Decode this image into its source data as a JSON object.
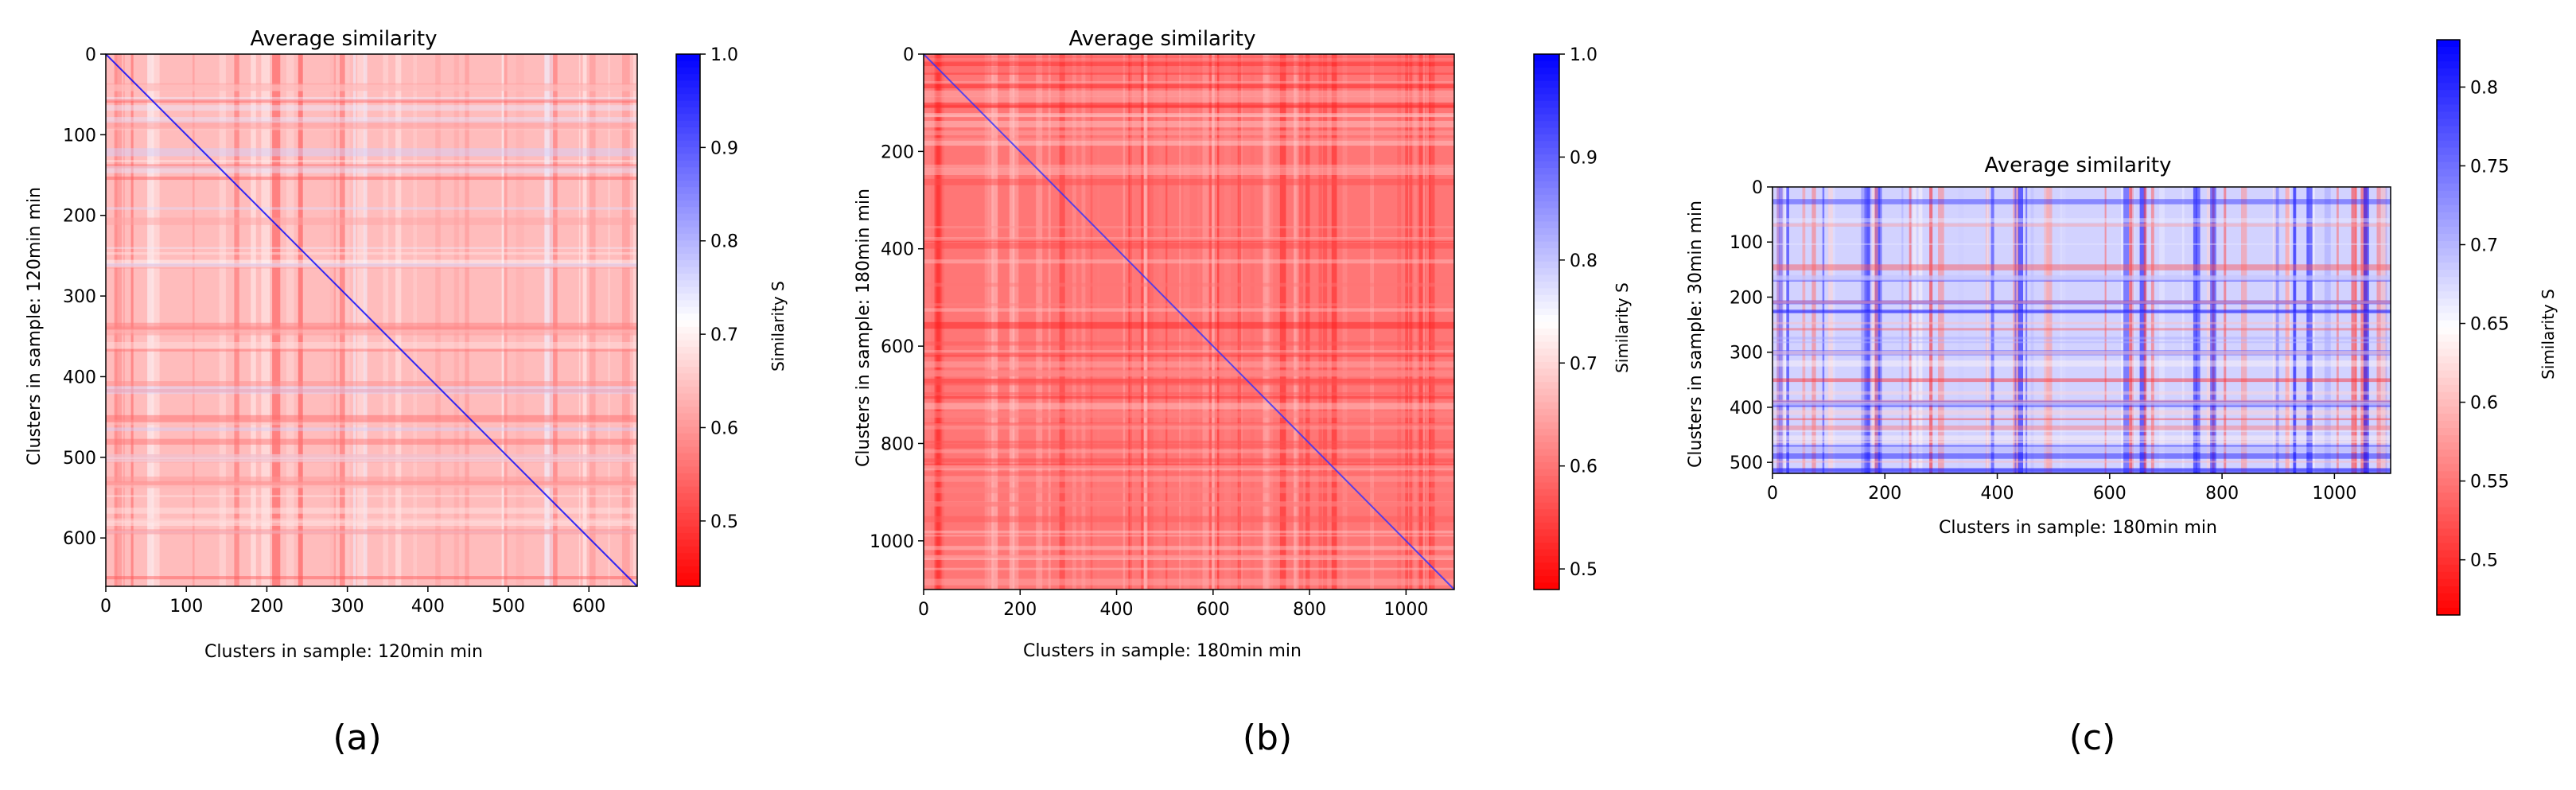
{
  "figure": {
    "panel_labels": [
      "(a)",
      "(b)",
      "(c)"
    ]
  },
  "colors": {
    "low": "#ff0000",
    "mid": "#ffffff",
    "high": "#0000ff",
    "axis": "#000000"
  },
  "chart_data": [
    {
      "type": "heatmap",
      "title": "Average similarity",
      "xlabel": "Clusters in sample: 120min min",
      "ylabel": "Clusters in sample: 120min min",
      "colorbar_label": "Similarity S",
      "xlim": [
        0,
        660
      ],
      "ylim": [
        660,
        0
      ],
      "xticks": [
        0,
        100,
        200,
        300,
        400,
        500,
        600
      ],
      "yticks": [
        0,
        100,
        200,
        300,
        400,
        500,
        600
      ],
      "colorbar_range": [
        0.43,
        1.0
      ],
      "colorbar_ticks": [
        0.5,
        0.6,
        0.7,
        0.8,
        0.9,
        1.0
      ],
      "typical_value": 0.64,
      "diagonal": true,
      "diagonal_value": 1.0
    },
    {
      "type": "heatmap",
      "title": "Average similarity",
      "xlabel": "Clusters in sample: 180min min",
      "ylabel": "Clusters in sample: 180min min",
      "colorbar_label": "Similarity S",
      "xlim": [
        0,
        1100
      ],
      "ylim": [
        1100,
        0
      ],
      "xticks": [
        0,
        200,
        400,
        600,
        800,
        1000
      ],
      "yticks": [
        0,
        200,
        400,
        600,
        800,
        1000
      ],
      "colorbar_range": [
        0.48,
        1.0
      ],
      "colorbar_ticks": [
        0.5,
        0.6,
        0.7,
        0.8,
        0.9,
        1.0
      ],
      "typical_value": 0.6,
      "diagonal": true,
      "diagonal_value": 0.95
    },
    {
      "type": "heatmap",
      "title": "Average similarity",
      "xlabel": "Clusters in sample: 180min min",
      "ylabel": "Clusters in sample: 30min min",
      "colorbar_label": "Similarity S",
      "xlim": [
        0,
        1100
      ],
      "ylim": [
        520,
        0
      ],
      "xticks": [
        0,
        200,
        400,
        600,
        800,
        1000
      ],
      "yticks": [
        0,
        100,
        200,
        300,
        400,
        500
      ],
      "colorbar_range": [
        0.465,
        0.83
      ],
      "colorbar_ticks": [
        0.5,
        0.55,
        0.6,
        0.65,
        0.7,
        0.75,
        0.8
      ],
      "typical_value": 0.68,
      "diagonal": false
    }
  ]
}
